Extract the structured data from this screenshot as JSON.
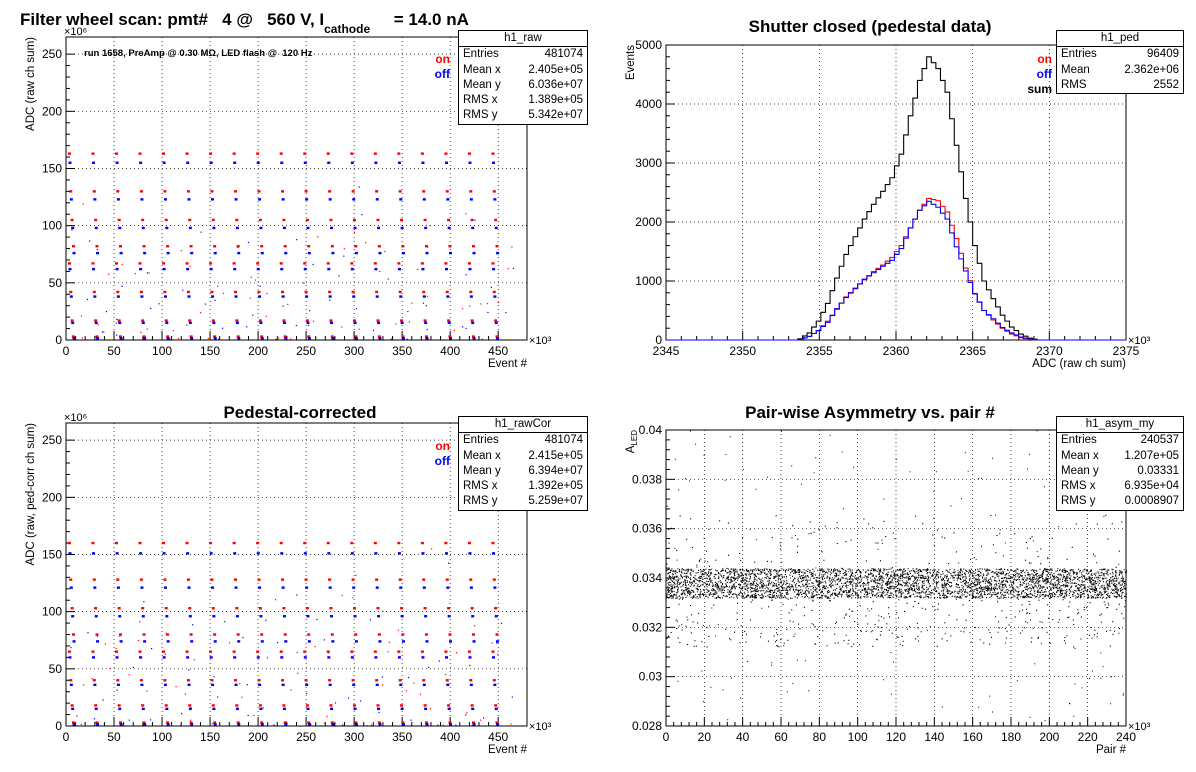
{
  "header": {
    "title_pre": "Filter wheel scan: pmt#   4 @   560 V, I",
    "title_sub": "cathode",
    "title_post": "     = 14.0 nA"
  },
  "colors": {
    "on": "#ff0000",
    "off": "#0000ff",
    "sum": "#000000",
    "frame": "#000000",
    "grid": "#000000"
  },
  "chart_data": [
    {
      "id": "raw",
      "type": "scatter",
      "title": "",
      "xlabel": "Event #",
      "ylabel": "ADC (raw ch sum)",
      "x_exponent": "×10³",
      "y_exponent": "×10⁶",
      "xlim": [
        0,
        480
      ],
      "ylim": [
        0,
        265
      ],
      "xticks": [
        0,
        50,
        100,
        150,
        200,
        250,
        300,
        350,
        400,
        450
      ],
      "yticks": [
        0,
        50,
        100,
        150,
        200,
        250
      ],
      "grid": true,
      "annotation": "run 1658, PreAmp @ 0.30 MΩ, LED flash @  120 Hz",
      "legend": {
        "position": "top-right",
        "entries": [
          {
            "name": "on",
            "color": "#ff0000"
          },
          {
            "name": "off",
            "color": "#0000ff"
          }
        ]
      },
      "stats": {
        "name": "h1_raw",
        "rows": [
          [
            "Entries",
            "481074"
          ],
          [
            "Mean x",
            "2.405e+05"
          ],
          [
            "Mean y",
            "6.036e+07"
          ],
          [
            "RMS x",
            "1.389e+05"
          ],
          [
            "RMS y",
            "5.342e+07"
          ]
        ]
      },
      "step_period": 24.5,
      "series": [
        {
          "name": "on",
          "levels": [
            163,
            130,
            105,
            82,
            67,
            42,
            17,
            3
          ]
        },
        {
          "name": "off",
          "levels": [
            155,
            123,
            98,
            76,
            62,
            38,
            15,
            1.5
          ]
        }
      ]
    },
    {
      "id": "ped",
      "type": "line",
      "title": "Shutter closed (pedestal data)",
      "xlabel": "ADC (raw ch sum)",
      "ylabel": "Events",
      "x_exponent": "×10³",
      "xlim": [
        2345,
        2375
      ],
      "ylim": [
        0,
        5000
      ],
      "xticks": [
        2345,
        2350,
        2355,
        2360,
        2365,
        2370,
        2375
      ],
      "yticks": [
        0,
        1000,
        2000,
        3000,
        4000,
        5000
      ],
      "grid": true,
      "legend": {
        "position": "top-right",
        "entries": [
          {
            "name": "on",
            "color": "#ff0000"
          },
          {
            "name": "off",
            "color": "#0000ff"
          },
          {
            "name": "sum",
            "color": "#000000"
          }
        ]
      },
      "stats": {
        "name": "h1_ped",
        "rows": [
          [
            "Entries",
            "96409"
          ],
          [
            "Mean",
            "2.362e+06"
          ],
          [
            "RMS",
            "2552"
          ]
        ]
      },
      "bin_width": 0.3,
      "series": [
        {
          "name": "sum",
          "x": [
            2353.6,
            2354.2,
            2354.8,
            2355.4,
            2356.0,
            2356.6,
            2357.2,
            2357.8,
            2358.4,
            2359.0,
            2359.6,
            2360.2,
            2360.8,
            2361.4,
            2362.0,
            2362.6,
            2363.2,
            2363.8,
            2364.4,
            2365.0,
            2365.6,
            2366.2,
            2366.8,
            2367.4,
            2368.0,
            2368.6,
            2369.2
          ],
          "y": [
            20,
            120,
            320,
            620,
            1050,
            1450,
            1750,
            2050,
            2300,
            2520,
            2750,
            3150,
            3800,
            4400,
            4800,
            4600,
            4200,
            3300,
            2400,
            1600,
            1000,
            700,
            420,
            220,
            100,
            30,
            0
          ]
        },
        {
          "name": "on",
          "x": [
            2353.6,
            2354.2,
            2354.8,
            2355.4,
            2356.0,
            2356.6,
            2357.2,
            2357.8,
            2358.4,
            2359.0,
            2359.6,
            2360.2,
            2360.8,
            2361.4,
            2362.0,
            2362.6,
            2363.2,
            2363.8,
            2364.4,
            2365.0,
            2365.6,
            2366.2,
            2366.8,
            2367.4,
            2368.0,
            2368.6,
            2369.2
          ],
          "y": [
            10,
            60,
            160,
            320,
            520,
            730,
            880,
            1020,
            1160,
            1270,
            1400,
            1600,
            1900,
            2200,
            2400,
            2360,
            2170,
            1720,
            1220,
            790,
            500,
            340,
            200,
            100,
            40,
            10,
            0
          ]
        },
        {
          "name": "off",
          "x": [
            2353.6,
            2354.2,
            2354.8,
            2355.4,
            2356.0,
            2356.6,
            2357.2,
            2357.8,
            2358.4,
            2359.0,
            2359.6,
            2360.2,
            2360.8,
            2361.4,
            2362.0,
            2362.6,
            2363.2,
            2363.8,
            2364.4,
            2365.0,
            2365.6,
            2366.2,
            2366.8,
            2367.4,
            2368.0,
            2368.6,
            2369.2
          ],
          "y": [
            10,
            60,
            160,
            300,
            530,
            720,
            870,
            1030,
            1140,
            1250,
            1350,
            1550,
            1900,
            2200,
            2350,
            2250,
            2050,
            1580,
            1170,
            780,
            500,
            360,
            210,
            120,
            50,
            15,
            0
          ]
        }
      ]
    },
    {
      "id": "rawcor",
      "type": "scatter",
      "title": "Pedestal-corrected",
      "xlabel": "Event #",
      "ylabel": "ADC (raw, ped-corr ch sum)",
      "x_exponent": "×10³",
      "y_exponent": "×10⁶",
      "xlim": [
        0,
        480
      ],
      "ylim": [
        0,
        265
      ],
      "xticks": [
        0,
        50,
        100,
        150,
        200,
        250,
        300,
        350,
        400,
        450
      ],
      "yticks": [
        0,
        50,
        100,
        150,
        200,
        250
      ],
      "grid": true,
      "legend": {
        "position": "top-right",
        "entries": [
          {
            "name": "on",
            "color": "#ff0000"
          },
          {
            "name": "off",
            "color": "#0000ff"
          }
        ]
      },
      "stats": {
        "name": "h1_rawCor",
        "rows": [
          [
            "Entries",
            "481074"
          ],
          [
            "Mean x",
            "2.415e+05"
          ],
          [
            "Mean y",
            "6.394e+07"
          ],
          [
            "RMS x",
            "1.392e+05"
          ],
          [
            "RMS y",
            "5.259e+07"
          ]
        ]
      },
      "step_period": 24.5,
      "series": [
        {
          "name": "on",
          "levels": [
            160,
            128,
            103,
            80,
            65,
            40,
            18,
            3
          ]
        },
        {
          "name": "off",
          "levels": [
            151,
            121,
            96,
            74,
            60,
            36,
            15,
            1.5
          ]
        }
      ]
    },
    {
      "id": "asym",
      "type": "scatter",
      "title": "Pair-wise Asymmetry vs. pair #",
      "xlabel": "Pair #",
      "ylabel": "A",
      "ylabel_sub": "LED",
      "x_exponent": "×10³",
      "xlim": [
        0,
        240
      ],
      "ylim": [
        0.028,
        0.04
      ],
      "xticks": [
        0,
        20,
        40,
        60,
        80,
        100,
        120,
        140,
        160,
        180,
        200,
        220,
        240
      ],
      "yticks": [
        0.028,
        0.03,
        0.032,
        0.034,
        0.036,
        0.038,
        0.04
      ],
      "grid": true,
      "stats": {
        "name": "h1_asym_my",
        "rows": [
          [
            "Entries",
            "240537"
          ],
          [
            "Mean x",
            "1.207e+05"
          ],
          [
            "Mean y",
            "0.03331"
          ],
          [
            "RMS x",
            "6.935e+04"
          ],
          [
            "RMS y",
            "0.0008907"
          ]
        ]
      },
      "band_center": 0.0338,
      "band_halfwidth": 0.0006,
      "spike_top": 0.0366,
      "dip_bottom": 0.0312
    }
  ]
}
